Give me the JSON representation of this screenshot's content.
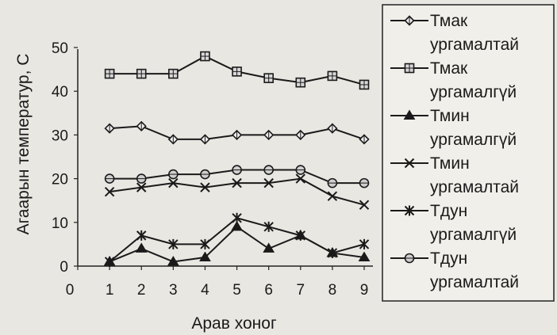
{
  "chart_data": {
    "type": "line",
    "xlabel": "Арав хоног",
    "ylabel": "Агаарын температур, С",
    "x_ticks": [
      "0",
      "1",
      "2",
      "3",
      "4",
      "5",
      "6",
      "7",
      "8",
      "9"
    ],
    "y_ticks": [
      "0",
      "10",
      "20",
      "30",
      "40",
      "50"
    ],
    "xlim": [
      0,
      9
    ],
    "ylim": [
      0,
      50
    ],
    "legend_position": "right",
    "x": [
      1,
      2,
      3,
      4,
      5,
      6,
      7,
      8,
      9
    ],
    "series": [
      {
        "name": "Тмак ургамалтай",
        "marker": "diamond",
        "values": [
          31.5,
          32,
          29,
          29,
          30,
          30,
          30,
          31.5,
          29
        ]
      },
      {
        "name": "Тмак ургамалгүй",
        "marker": "square-cross",
        "values": [
          44,
          44,
          44,
          48,
          44.5,
          43,
          42,
          43.5,
          41.5
        ]
      },
      {
        "name": "Тмин ургамалгүй",
        "marker": "triangle",
        "values": [
          1,
          4,
          1,
          2,
          9,
          4,
          7,
          3,
          2
        ]
      },
      {
        "name": "Тмин ургамалтай",
        "marker": "x",
        "values": [
          17,
          18,
          19,
          18,
          19,
          19,
          20,
          16,
          14
        ]
      },
      {
        "name": "Тдун ургамалгүй",
        "marker": "star",
        "values": [
          1,
          7,
          5,
          5,
          11,
          9,
          7,
          3,
          5
        ]
      },
      {
        "name": "Тдун ургамалтай",
        "marker": "circle",
        "values": [
          20,
          20,
          21,
          21,
          22,
          22,
          22,
          19,
          19
        ]
      }
    ]
  }
}
